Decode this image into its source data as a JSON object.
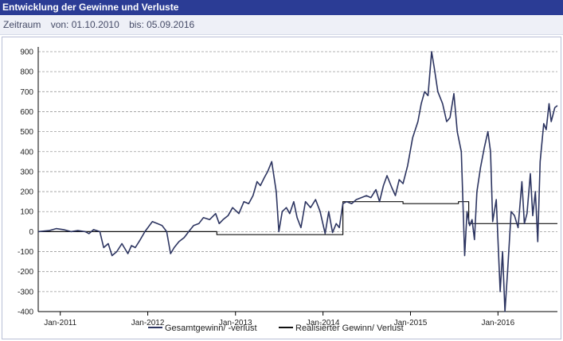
{
  "header": {
    "title": "Entwicklung der Gewinne und Verluste",
    "period_label": "Zeitraum",
    "from_label": "von: 01.10.2010",
    "to_label": "bis: 05.09.2016"
  },
  "colors": {
    "header_bg": "#2b3c95",
    "total_series": "#2d3561",
    "realized_series": "#111111"
  },
  "chart_data": {
    "type": "line",
    "xlim": [
      "2010-10-01",
      "2016-09-05"
    ],
    "ylim": [
      -400,
      900
    ],
    "y_ticks": [
      -400,
      -300,
      -200,
      -100,
      0,
      100,
      200,
      300,
      400,
      500,
      600,
      700,
      800,
      900
    ],
    "x_ticks": [
      {
        "label": "Jan-2011",
        "date": "2011-01-01"
      },
      {
        "label": "Jan-2012",
        "date": "2012-01-01"
      },
      {
        "label": "Jan-2013",
        "date": "2013-01-01"
      },
      {
        "label": "Jan-2014",
        "date": "2014-01-01"
      },
      {
        "label": "Jan-2015",
        "date": "2015-01-01"
      },
      {
        "label": "Jan-2016",
        "date": "2016-01-01"
      }
    ],
    "grid": "horizontal dashed",
    "legend_position": "bottom",
    "series": [
      {
        "name": "Gesamtgewinn/ -verlust",
        "color": "#2d3561",
        "points": [
          [
            "2010-10-01",
            0
          ],
          [
            "2010-11-15",
            5
          ],
          [
            "2010-12-15",
            15
          ],
          [
            "2011-01-15",
            10
          ],
          [
            "2011-02-15",
            0
          ],
          [
            "2011-03-15",
            5
          ],
          [
            "2011-04-15",
            0
          ],
          [
            "2011-05-01",
            -10
          ],
          [
            "2011-05-20",
            10
          ],
          [
            "2011-06-15",
            0
          ],
          [
            "2011-07-01",
            -80
          ],
          [
            "2011-07-20",
            -60
          ],
          [
            "2011-08-05",
            -120
          ],
          [
            "2011-08-25",
            -100
          ],
          [
            "2011-09-15",
            -60
          ],
          [
            "2011-10-10",
            -110
          ],
          [
            "2011-10-25",
            -70
          ],
          [
            "2011-11-10",
            -80
          ],
          [
            "2011-12-01",
            -40
          ],
          [
            "2011-12-20",
            0
          ],
          [
            "2012-01-20",
            50
          ],
          [
            "2012-02-10",
            40
          ],
          [
            "2012-03-01",
            30
          ],
          [
            "2012-03-20",
            0
          ],
          [
            "2012-04-05",
            -110
          ],
          [
            "2012-04-20",
            -80
          ],
          [
            "2012-05-10",
            -50
          ],
          [
            "2012-06-01",
            -30
          ],
          [
            "2012-06-20",
            0
          ],
          [
            "2012-07-10",
            30
          ],
          [
            "2012-08-01",
            40
          ],
          [
            "2012-08-20",
            70
          ],
          [
            "2012-09-15",
            60
          ],
          [
            "2012-10-10",
            90
          ],
          [
            "2012-10-25",
            40
          ],
          [
            "2012-11-10",
            60
          ],
          [
            "2012-12-01",
            80
          ],
          [
            "2012-12-20",
            120
          ],
          [
            "2013-01-15",
            90
          ],
          [
            "2013-02-05",
            150
          ],
          [
            "2013-02-25",
            140
          ],
          [
            "2013-03-15",
            180
          ],
          [
            "2013-04-01",
            250
          ],
          [
            "2013-04-15",
            230
          ],
          [
            "2013-05-01",
            270
          ],
          [
            "2013-05-15",
            300
          ],
          [
            "2013-06-01",
            350
          ],
          [
            "2013-06-20",
            200
          ],
          [
            "2013-07-01",
            0
          ],
          [
            "2013-07-15",
            100
          ],
          [
            "2013-08-01",
            120
          ],
          [
            "2013-08-15",
            90
          ],
          [
            "2013-09-01",
            150
          ],
          [
            "2013-09-15",
            70
          ],
          [
            "2013-10-01",
            20
          ],
          [
            "2013-10-20",
            150
          ],
          [
            "2013-11-10",
            120
          ],
          [
            "2013-12-01",
            160
          ],
          [
            "2013-12-20",
            100
          ],
          [
            "2014-01-10",
            -10
          ],
          [
            "2014-01-25",
            100
          ],
          [
            "2014-02-10",
            -5
          ],
          [
            "2014-02-25",
            40
          ],
          [
            "2014-03-10",
            20
          ],
          [
            "2014-03-25",
            140
          ],
          [
            "2014-04-10",
            150
          ],
          [
            "2014-05-01",
            140
          ],
          [
            "2014-05-20",
            160
          ],
          [
            "2014-06-10",
            170
          ],
          [
            "2014-07-01",
            180
          ],
          [
            "2014-07-20",
            170
          ],
          [
            "2014-08-10",
            210
          ],
          [
            "2014-08-25",
            150
          ],
          [
            "2014-09-10",
            230
          ],
          [
            "2014-09-25",
            280
          ],
          [
            "2014-10-15",
            220
          ],
          [
            "2014-10-30",
            180
          ],
          [
            "2014-11-15",
            260
          ],
          [
            "2014-12-01",
            240
          ],
          [
            "2014-12-20",
            330
          ],
          [
            "2015-01-10",
            470
          ],
          [
            "2015-02-01",
            550
          ],
          [
            "2015-02-15",
            640
          ],
          [
            "2015-03-01",
            700
          ],
          [
            "2015-03-15",
            680
          ],
          [
            "2015-03-30",
            900
          ],
          [
            "2015-04-10",
            820
          ],
          [
            "2015-04-25",
            700
          ],
          [
            "2015-05-15",
            640
          ],
          [
            "2015-06-01",
            550
          ],
          [
            "2015-06-15",
            570
          ],
          [
            "2015-07-01",
            690
          ],
          [
            "2015-07-15",
            500
          ],
          [
            "2015-08-01",
            400
          ],
          [
            "2015-08-15",
            -120
          ],
          [
            "2015-08-25",
            100
          ],
          [
            "2015-09-05",
            30
          ],
          [
            "2015-09-15",
            60
          ],
          [
            "2015-09-25",
            -40
          ],
          [
            "2015-10-05",
            200
          ],
          [
            "2015-10-20",
            320
          ],
          [
            "2015-11-05",
            420
          ],
          [
            "2015-11-20",
            500
          ],
          [
            "2015-12-01",
            400
          ],
          [
            "2015-12-10",
            50
          ],
          [
            "2015-12-25",
            160
          ],
          [
            "2016-01-10",
            -300
          ],
          [
            "2016-01-20",
            -100
          ],
          [
            "2016-01-30",
            -400
          ],
          [
            "2016-02-10",
            -200
          ],
          [
            "2016-02-25",
            100
          ],
          [
            "2016-03-10",
            80
          ],
          [
            "2016-03-25",
            20
          ],
          [
            "2016-04-10",
            250
          ],
          [
            "2016-04-20",
            40
          ],
          [
            "2016-05-01",
            90
          ],
          [
            "2016-05-15",
            290
          ],
          [
            "2016-05-25",
            80
          ],
          [
            "2016-06-05",
            200
          ],
          [
            "2016-06-15",
            -50
          ],
          [
            "2016-06-25",
            350
          ],
          [
            "2016-07-10",
            540
          ],
          [
            "2016-07-20",
            510
          ],
          [
            "2016-08-01",
            640
          ],
          [
            "2016-08-10",
            550
          ],
          [
            "2016-08-25",
            620
          ],
          [
            "2016-09-05",
            630
          ]
        ]
      },
      {
        "name": "Realisierter Gewinn/ Verlust",
        "color": "#111111",
        "points": [
          [
            "2010-10-01",
            0
          ],
          [
            "2012-10-15",
            0
          ],
          [
            "2012-10-15",
            -15
          ],
          [
            "2014-03-25",
            -15
          ],
          [
            "2014-03-25",
            150
          ],
          [
            "2014-12-01",
            150
          ],
          [
            "2014-12-01",
            140
          ],
          [
            "2015-07-20",
            140
          ],
          [
            "2015-07-20",
            150
          ],
          [
            "2015-09-01",
            150
          ],
          [
            "2015-09-01",
            40
          ],
          [
            "2016-09-05",
            40
          ]
        ]
      }
    ]
  }
}
